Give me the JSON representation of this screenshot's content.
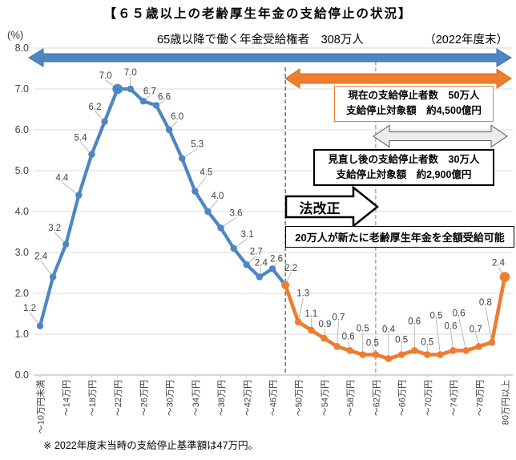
{
  "title": "【６５歳以上の老齢厚生年金の支給停止の状況】",
  "header": {
    "unit_label": "(%)",
    "subtitle": "65歳以降で働く年金受給権者　308万人",
    "period_note": "（2022年度末）"
  },
  "annotations": {
    "current": {
      "line1": "現在の支給停止者数　50万人",
      "line2": "支給停止対象額　約4,500億円"
    },
    "revised": {
      "line1": "見直し後の支給停止者数　30万人",
      "line2": "支給停止対象額　約2,900億円"
    },
    "law_reform_label": "法改正",
    "new_full_receipt": "20万人が新たに老齢厚生年金を全額受給可能"
  },
  "footnote": "※ 2022年度末当時の支給停止基準額は47万円。",
  "colors": {
    "blue": "#4E86C4",
    "blue_edge": "#3A6EA8",
    "orange": "#ED7D31",
    "orange_edge": "#D96B1E",
    "gray_arrow_fill": "#EBEBEB",
    "gray_arrow_edge": "#595959",
    "grid": "#D9D9D9",
    "axis": "#BFBFBF",
    "text": "#404040",
    "leader": "#A6A6A6",
    "dashed_black": "#404040",
    "dashed_gray": "#8C8C8C"
  },
  "chart_data": {
    "type": "line",
    "title": "【６５歳以上の老齢厚生年金の支給停止の状況】",
    "ylabel": "(%)",
    "ylim": [
      0,
      8
    ],
    "ytick_step": 1,
    "grid": true,
    "legend": "none",
    "points_per_label": 2,
    "n_points": 37,
    "x_tick_labels": [
      "～10万円未満",
      "～14万円",
      "～18万円",
      "～22万円",
      "～26万円",
      "～30万円",
      "～34万円",
      "～38万円",
      "～42万円",
      "～46万円",
      "～50万円",
      "～54万円",
      "～58万円",
      "～62万円",
      "～66万円",
      "～70万円",
      "～74万円",
      "～78万円",
      "80万円以上"
    ],
    "vline_point_indices": [
      19,
      26
    ],
    "series": [
      {
        "name": "blue_current",
        "color": "#4E86C4",
        "start_index": 0,
        "values": [
          1.2,
          2.4,
          3.2,
          4.4,
          5.4,
          6.2,
          7.0,
          7.0,
          6.7,
          6.6,
          6.0,
          5.3,
          4.5,
          4.0,
          3.6,
          3.1,
          2.7,
          2.4,
          2.6,
          2.2
        ]
      },
      {
        "name": "orange_revised",
        "color": "#ED7D31",
        "start_index": 19,
        "values": [
          2.2,
          1.3,
          1.1,
          0.9,
          0.7,
          0.6,
          0.5,
          0.5,
          0.4,
          0.5,
          0.6,
          0.5,
          0.5,
          0.6,
          0.6,
          0.7,
          0.8,
          2.4
        ]
      }
    ]
  }
}
